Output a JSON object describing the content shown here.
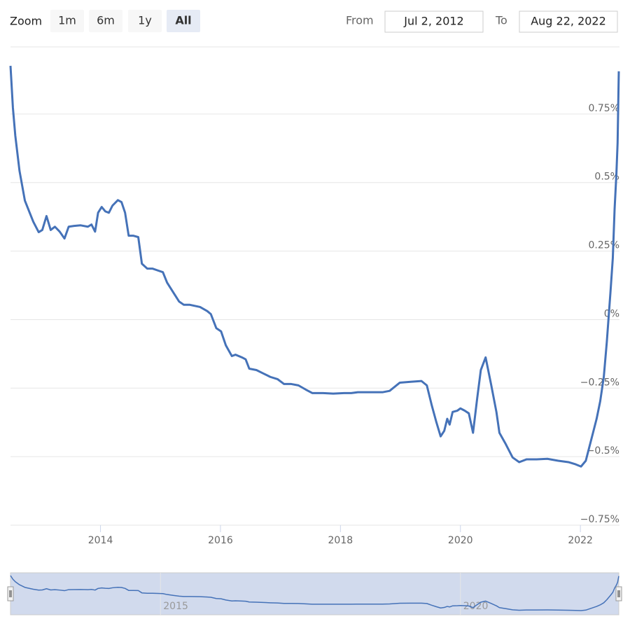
{
  "range_selector": {
    "label": "Zoom",
    "buttons": [
      "1m",
      "6m",
      "1y",
      "All"
    ],
    "selected": 3,
    "from_label": "From",
    "from": "Jul 2, 2012",
    "to_label": "To",
    "to": "Aug 22, 2022"
  },
  "chart_data": {
    "type": "line",
    "x": [
      2012.5,
      2012.54,
      2012.58,
      2012.65,
      2012.74,
      2012.82,
      2012.88,
      2012.97,
      2013.03,
      2013.1,
      2013.17,
      2013.24,
      2013.32,
      2013.4,
      2013.47,
      2013.56,
      2013.67,
      2013.79,
      2013.85,
      2013.91,
      2013.96,
      2014.02,
      2014.08,
      2014.14,
      2014.2,
      2014.29,
      2014.35,
      2014.41,
      2014.47,
      2014.55,
      2014.63,
      2014.69,
      2014.78,
      2014.87,
      2014.96,
      2015.04,
      2015.11,
      2015.22,
      2015.31,
      2015.39,
      2015.49,
      2015.66,
      2015.78,
      2015.84,
      2015.93,
      2016.01,
      2016.09,
      2016.19,
      2016.25,
      2016.36,
      2016.42,
      2016.48,
      2016.6,
      2016.71,
      2016.83,
      2016.95,
      2017.06,
      2017.18,
      2017.3,
      2017.42,
      2017.53,
      2017.71,
      2017.88,
      2018.06,
      2018.18,
      2018.29,
      2018.47,
      2018.7,
      2018.82,
      2018.99,
      2019.17,
      2019.35,
      2019.44,
      2019.52,
      2019.6,
      2019.67,
      2019.73,
      2019.78,
      2019.82,
      2019.87,
      2019.95,
      2020.0,
      2020.07,
      2020.14,
      2020.21,
      2020.28,
      2020.34,
      2020.42,
      2020.51,
      2020.6,
      2020.65,
      2020.75,
      2020.87,
      2020.98,
      2021.1,
      2021.27,
      2021.45,
      2021.63,
      2021.8,
      2021.92,
      2022.01,
      2022.09,
      2022.15,
      2022.21,
      2022.27,
      2022.33,
      2022.39,
      2022.44,
      2022.5,
      2022.54,
      2022.57,
      2022.6,
      2022.62,
      2022.64
    ],
    "series": [
      {
        "color": "#4572b8",
        "values": [
          0.926,
          0.773,
          0.671,
          0.543,
          0.434,
          0.39,
          0.357,
          0.319,
          0.327,
          0.378,
          0.327,
          0.339,
          0.321,
          0.296,
          0.339,
          0.342,
          0.344,
          0.339,
          0.347,
          0.321,
          0.39,
          0.411,
          0.395,
          0.39,
          0.416,
          0.436,
          0.429,
          0.39,
          0.306,
          0.306,
          0.301,
          0.204,
          0.186,
          0.186,
          0.179,
          0.173,
          0.135,
          0.097,
          0.066,
          0.054,
          0.054,
          0.046,
          0.031,
          0.02,
          -0.031,
          -0.043,
          -0.094,
          -0.133,
          -0.128,
          -0.138,
          -0.145,
          -0.179,
          -0.184,
          -0.196,
          -0.209,
          -0.217,
          -0.235,
          -0.235,
          -0.24,
          -0.255,
          -0.268,
          -0.268,
          -0.27,
          -0.268,
          -0.268,
          -0.265,
          -0.265,
          -0.265,
          -0.26,
          -0.23,
          -0.227,
          -0.224,
          -0.24,
          -0.311,
          -0.375,
          -0.426,
          -0.406,
          -0.362,
          -0.383,
          -0.337,
          -0.332,
          -0.324,
          -0.332,
          -0.342,
          -0.413,
          -0.286,
          -0.184,
          -0.138,
          -0.235,
          -0.337,
          -0.413,
          -0.452,
          -0.503,
          -0.52,
          -0.51,
          -0.51,
          -0.508,
          -0.515,
          -0.52,
          -0.528,
          -0.536,
          -0.515,
          -0.464,
          -0.413,
          -0.362,
          -0.298,
          -0.209,
          -0.082,
          0.097,
          0.224,
          0.403,
          0.531,
          0.645,
          0.906
        ]
      }
    ],
    "xlim": [
      2012.5,
      2022.64
    ],
    "xticks": [
      2014,
      2016,
      2018,
      2020,
      2022
    ],
    "ylim": [
      -0.75,
      0.995
    ],
    "yticks": [
      {
        "value": -0.75,
        "label": "−0.75%"
      },
      {
        "value": -0.5,
        "label": "−0.5%"
      },
      {
        "value": -0.25,
        "label": "−0.25%"
      },
      {
        "value": 0,
        "label": "0%"
      },
      {
        "value": 0.25,
        "label": "0.25%"
      },
      {
        "value": 0.5,
        "label": "0.5%"
      },
      {
        "value": 0.75,
        "label": "0.75%"
      }
    ],
    "grid": true,
    "navigator": {
      "xticks": [
        2015,
        2020
      ]
    }
  }
}
